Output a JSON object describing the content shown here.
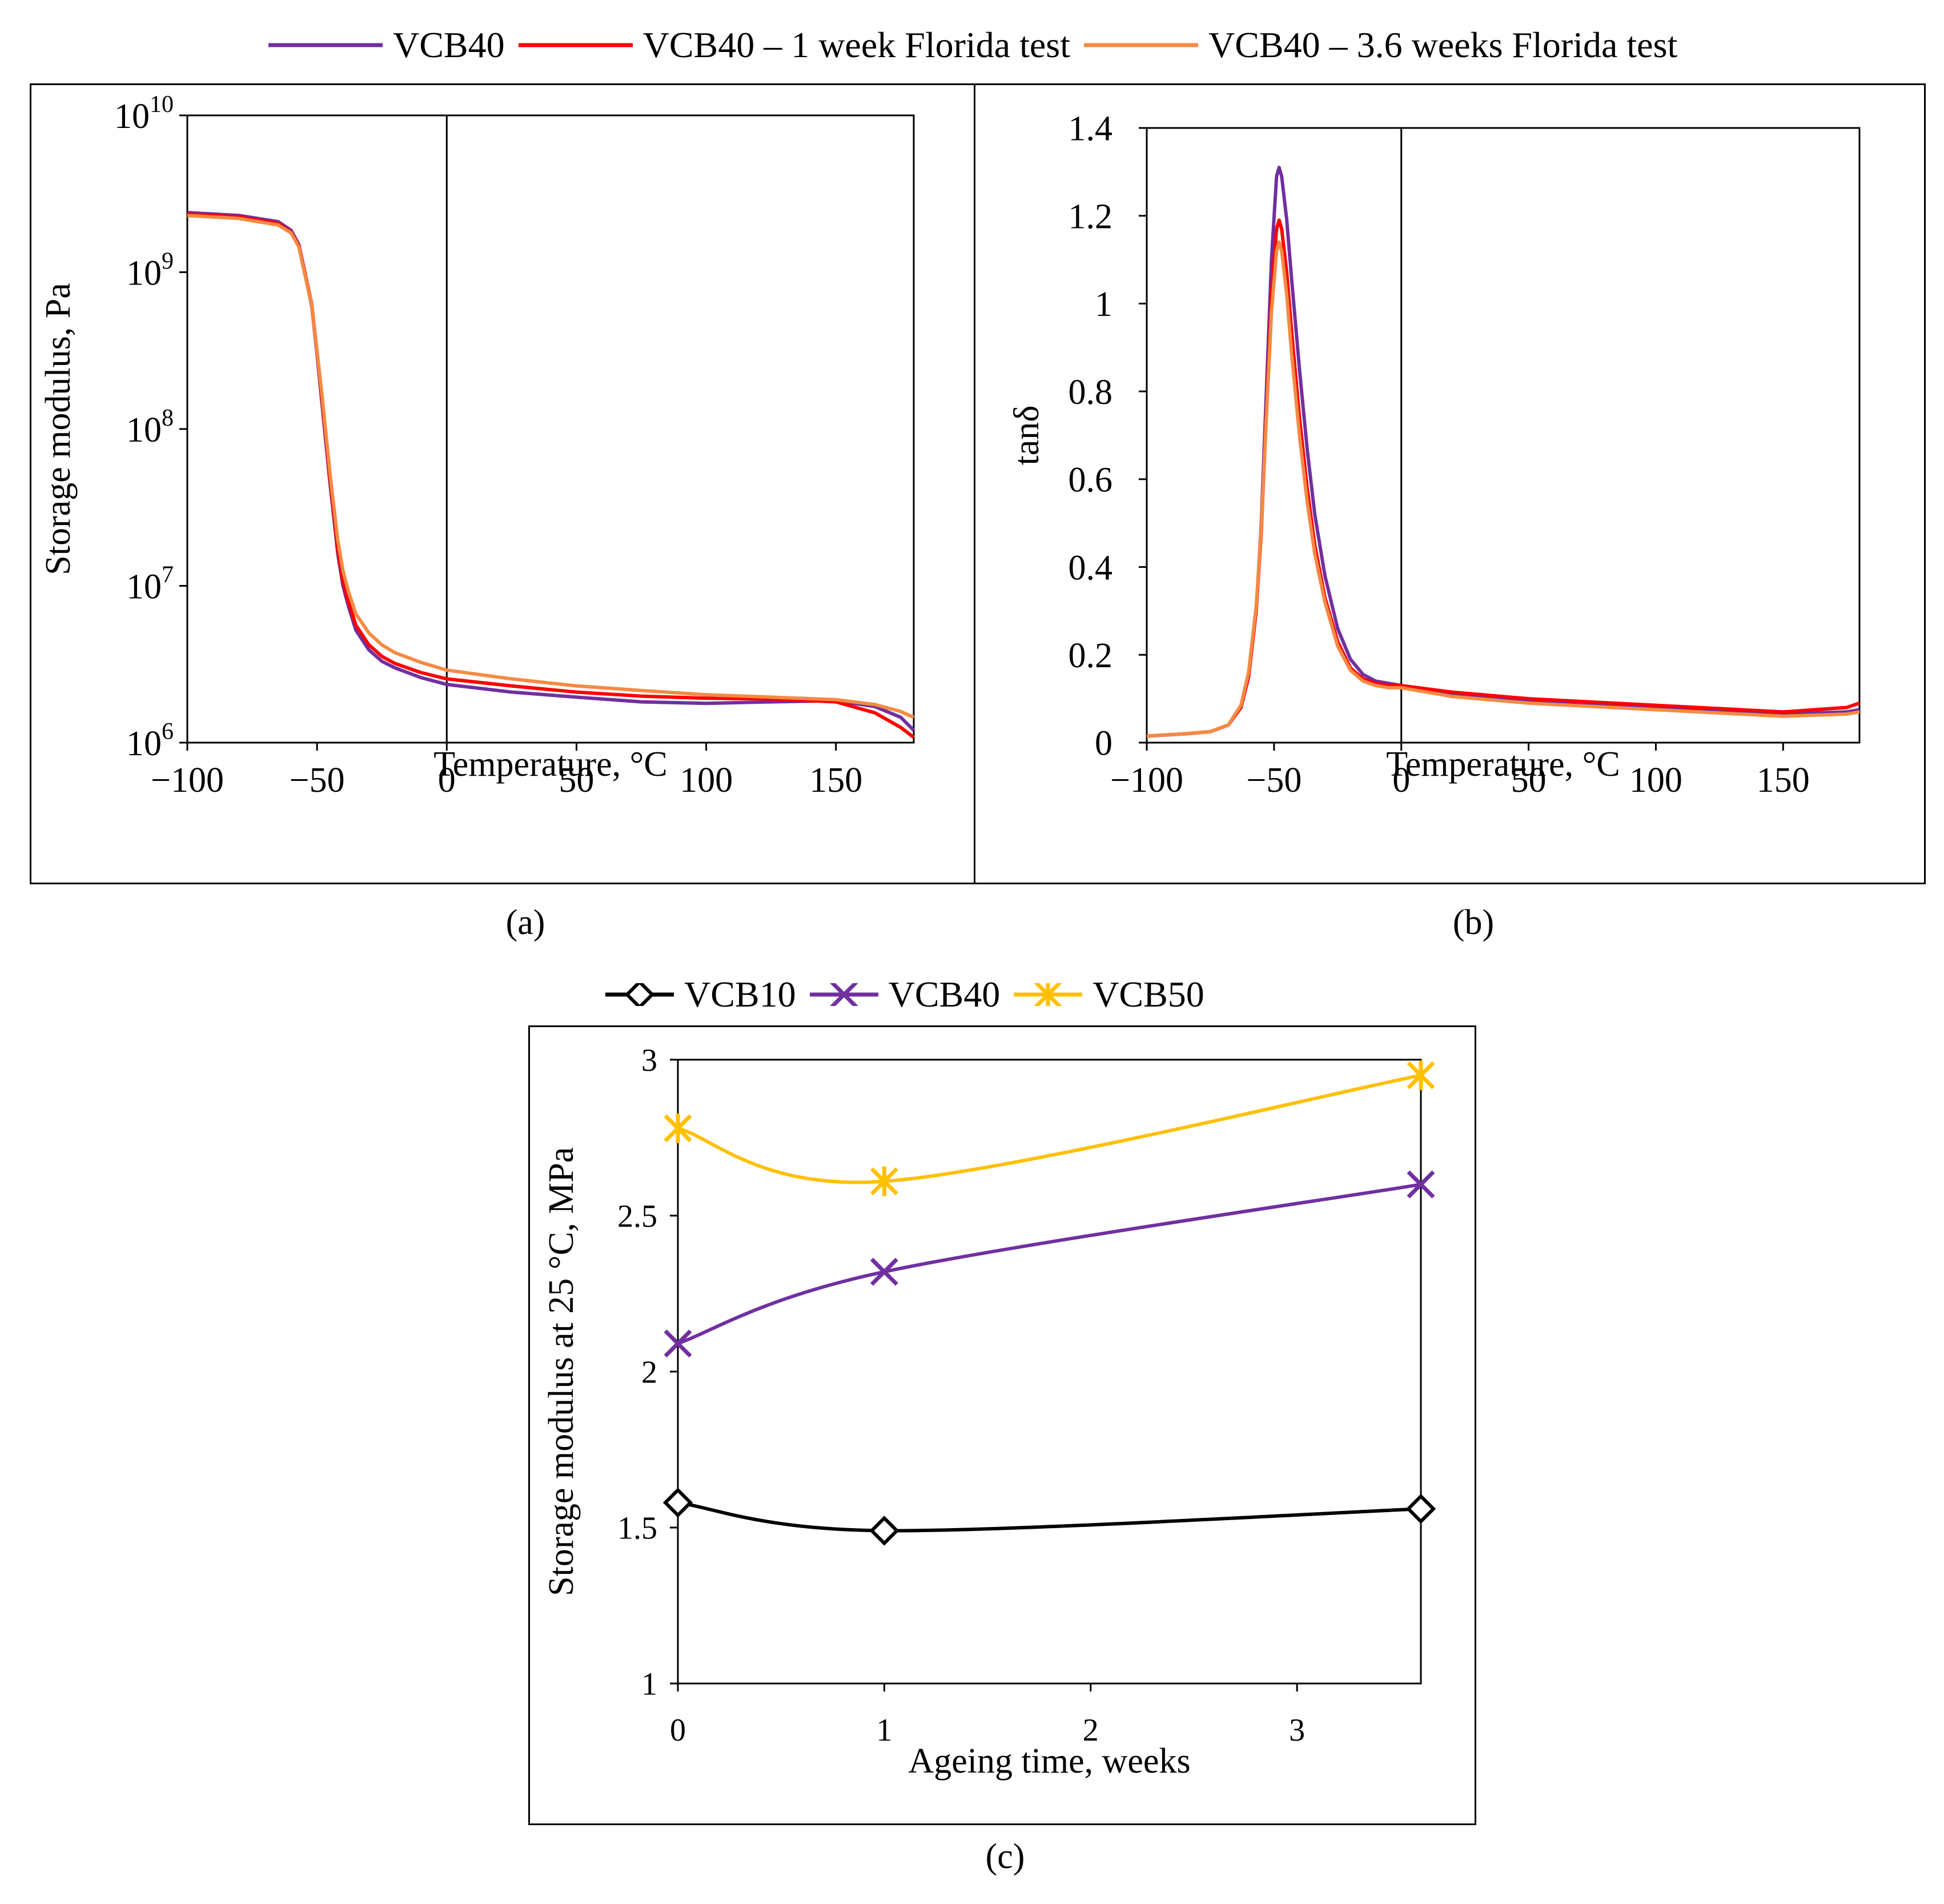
{
  "legend_top": [
    {
      "name": "VCB40",
      "color": "#7030A0"
    },
    {
      "name": "VCB40 – 1 week Florida test",
      "color": "#FF0000"
    },
    {
      "name": "VCB40 – 3.6 weeks Florida test",
      "color": "#F58A43"
    }
  ],
  "legend_bottom": [
    {
      "name": "VCB10",
      "color": "#000000",
      "marker": "diamond"
    },
    {
      "name": "VCB40",
      "color": "#7030A0",
      "marker": "x"
    },
    {
      "name": "VCB50",
      "color": "#FFC000",
      "marker": "star"
    }
  ],
  "captions": {
    "a": "(a)",
    "b": "(b)",
    "c": "(c)"
  },
  "chart_data": [
    {
      "id": "a",
      "type": "line",
      "xlabel": "Temperature, °C",
      "ylabel": "Storage modulus, Pa",
      "xlim": [
        -100,
        180
      ],
      "xticks": [
        -100,
        -50,
        0,
        50,
        100,
        150
      ],
      "xtick_labels": [
        "−100",
        "−50",
        "0",
        "50",
        "100",
        "150"
      ],
      "yscale": "log",
      "ylim_exp": [
        6,
        10
      ],
      "ytick_base": "10",
      "ytick_exps": [
        "6",
        "7",
        "8",
        "9",
        "10"
      ],
      "reference_line_x": 0,
      "series": [
        {
          "name": "VCB40",
          "color": "#7030A0",
          "x": [
            -100,
            -80,
            -65,
            -60,
            -57,
            -55,
            -52,
            -50,
            -48,
            -45,
            -42,
            -40,
            -38,
            -35,
            -30,
            -25,
            -20,
            -10,
            0,
            25,
            50,
            75,
            100,
            125,
            150,
            165,
            175,
            180
          ],
          "y": [
            2400000000.0,
            2300000000.0,
            2100000000.0,
            1850000000.0,
            1500000000.0,
            1050000000.0,
            600000000.0,
            300000000.0,
            140000000.0,
            45000000.0,
            16000000.0,
            10000000.0,
            7500000.0,
            5200000.0,
            3900000.0,
            3300000.0,
            3000000.0,
            2600000.0,
            2350000.0,
            2100000.0,
            1950000.0,
            1820000.0,
            1780000.0,
            1820000.0,
            1850000.0,
            1700000.0,
            1450000.0,
            1200000.0
          ]
        },
        {
          "name": "VCB40 – 1 week Florida test",
          "color": "#FF0000",
          "x": [
            -100,
            -80,
            -65,
            -60,
            -57,
            -55,
            -52,
            -50,
            -48,
            -45,
            -42,
            -40,
            -38,
            -35,
            -30,
            -25,
            -20,
            -10,
            0,
            25,
            50,
            75,
            100,
            125,
            150,
            165,
            175,
            180
          ],
          "y": [
            2350000000.0,
            2250000000.0,
            2050000000.0,
            1800000000.0,
            1480000000.0,
            1050000000.0,
            620000000.0,
            310000000.0,
            150000000.0,
            48000000.0,
            17000000.0,
            10700000.0,
            8000000.0,
            5600000.0,
            4200000.0,
            3550000.0,
            3200000.0,
            2800000.0,
            2550000.0,
            2300000.0,
            2100000.0,
            1980000.0,
            1920000.0,
            1900000.0,
            1820000.0,
            1550000.0,
            1250000.0,
            1080000.0
          ]
        },
        {
          "name": "VCB40 – 3.6 weeks Florida test",
          "color": "#F58A43",
          "x": [
            -100,
            -80,
            -65,
            -60,
            -57,
            -55,
            -52,
            -50,
            -48,
            -45,
            -42,
            -40,
            -38,
            -35,
            -30,
            -25,
            -20,
            -10,
            0,
            25,
            50,
            75,
            100,
            125,
            150,
            165,
            175,
            180
          ],
          "y": [
            2300000000.0,
            2200000000.0,
            2000000000.0,
            1780000000.0,
            1450000000.0,
            1020000000.0,
            610000000.0,
            315000000.0,
            160000000.0,
            52000000.0,
            19500000.0,
            12500000.0,
            9300000.0,
            6600000.0,
            5000000.0,
            4200000.0,
            3750000.0,
            3250000.0,
            2900000.0,
            2550000.0,
            2300000.0,
            2150000.0,
            2020000.0,
            1950000.0,
            1880000.0,
            1750000.0,
            1580000.0,
            1450000.0
          ]
        }
      ]
    },
    {
      "id": "b",
      "type": "line",
      "xlabel": "Temperature, °C",
      "ylabel": "tanδ",
      "xlim": [
        -100,
        180
      ],
      "xticks": [
        -100,
        -50,
        0,
        50,
        100,
        150
      ],
      "xtick_labels": [
        "−100",
        "−50",
        "0",
        "50",
        "100",
        "150"
      ],
      "ylim": [
        0,
        1.4
      ],
      "yticks": [
        0,
        0.2,
        0.4,
        0.6,
        0.8,
        1.0,
        1.2,
        1.4
      ],
      "ytick_labels": [
        "0",
        "0.2",
        "0.4",
        "0.6",
        "0.8",
        "1",
        "1.2",
        "1.4"
      ],
      "reference_line_x": 0,
      "series": [
        {
          "name": "VCB40",
          "color": "#7030A0",
          "x": [
            -100,
            -85,
            -75,
            -68,
            -63,
            -60,
            -57,
            -55,
            -53,
            -51,
            -49,
            -48,
            -47,
            -45,
            -43,
            -40,
            -37,
            -34,
            -30,
            -25,
            -20,
            -15,
            -10,
            -5,
            0,
            20,
            50,
            100,
            150,
            175,
            180
          ],
          "y": [
            0.015,
            0.02,
            0.025,
            0.04,
            0.08,
            0.15,
            0.3,
            0.5,
            0.8,
            1.1,
            1.29,
            1.31,
            1.29,
            1.19,
            1.05,
            0.85,
            0.67,
            0.52,
            0.38,
            0.26,
            0.19,
            0.155,
            0.14,
            0.135,
            0.13,
            0.11,
            0.095,
            0.08,
            0.065,
            0.07,
            0.075
          ]
        },
        {
          "name": "VCB40 – 1 week Florida test",
          "color": "#FF0000",
          "x": [
            -100,
            -85,
            -75,
            -68,
            -63,
            -60,
            -57,
            -55,
            -53,
            -51,
            -49,
            -48,
            -47,
            -45,
            -43,
            -40,
            -37,
            -34,
            -30,
            -25,
            -20,
            -15,
            -10,
            -5,
            0,
            20,
            50,
            100,
            150,
            175,
            180
          ],
          "y": [
            0.015,
            0.02,
            0.025,
            0.04,
            0.08,
            0.15,
            0.3,
            0.48,
            0.75,
            1.02,
            1.17,
            1.19,
            1.17,
            1.07,
            0.93,
            0.74,
            0.58,
            0.45,
            0.33,
            0.23,
            0.17,
            0.145,
            0.135,
            0.13,
            0.13,
            0.115,
            0.1,
            0.085,
            0.07,
            0.08,
            0.09
          ]
        },
        {
          "name": "VCB40 – 3.6 weeks Florida test",
          "color": "#F58A43",
          "x": [
            -100,
            -85,
            -75,
            -68,
            -63,
            -60,
            -57,
            -55,
            -53,
            -51,
            -49,
            -48,
            -47,
            -45,
            -43,
            -40,
            -37,
            -34,
            -30,
            -25,
            -20,
            -15,
            -10,
            -5,
            0,
            20,
            50,
            100,
            150,
            175,
            180
          ],
          "y": [
            0.015,
            0.02,
            0.025,
            0.04,
            0.085,
            0.16,
            0.31,
            0.49,
            0.74,
            0.98,
            1.12,
            1.14,
            1.12,
            1.02,
            0.88,
            0.7,
            0.55,
            0.43,
            0.32,
            0.22,
            0.165,
            0.14,
            0.13,
            0.125,
            0.125,
            0.105,
            0.09,
            0.075,
            0.06,
            0.065,
            0.07
          ]
        }
      ]
    },
    {
      "id": "c",
      "type": "line",
      "xlabel": "Ageing time, weeks",
      "ylabel": "Storage modulus at 25 °C, MPa",
      "xlim": [
        0,
        3.6
      ],
      "xticks": [
        0,
        1,
        2,
        3
      ],
      "xtick_labels": [
        "0",
        "1",
        "2",
        "3"
      ],
      "ylim": [
        1,
        3
      ],
      "yticks": [
        1,
        1.5,
        2,
        2.5,
        3
      ],
      "ytick_labels": [
        "1",
        "1.5",
        "2",
        "2.5",
        "3"
      ],
      "series": [
        {
          "name": "VCB10",
          "color": "#000000",
          "marker": "diamond",
          "x": [
            0,
            1,
            3.6
          ],
          "y": [
            1.58,
            1.49,
            1.56
          ]
        },
        {
          "name": "VCB40",
          "color": "#7030A0",
          "marker": "x",
          "x": [
            0,
            1,
            3.6
          ],
          "y": [
            2.09,
            2.32,
            2.6
          ]
        },
        {
          "name": "VCB50",
          "color": "#FFC000",
          "marker": "star",
          "x": [
            0,
            1,
            3.6
          ],
          "y": [
            2.78,
            2.61,
            2.95
          ]
        }
      ]
    }
  ]
}
